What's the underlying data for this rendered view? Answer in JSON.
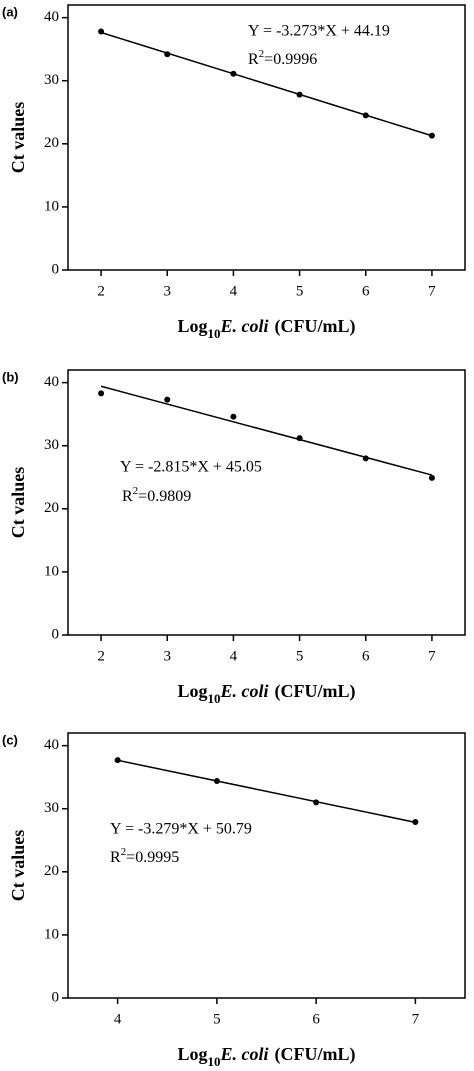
{
  "chart_data": [
    {
      "type": "scatter",
      "panel_label": "(a)",
      "x": [
        2,
        3,
        4,
        5,
        6,
        7
      ],
      "values": [
        37.8,
        34.2,
        31.1,
        27.8,
        24.5,
        21.3
      ],
      "color": "#000000",
      "xlim": [
        1.5,
        7.5
      ],
      "xticks": [
        2,
        3,
        4,
        5,
        6,
        7
      ],
      "ylim": [
        0,
        42
      ],
      "yticks": [
        0,
        10,
        20,
        30,
        40
      ],
      "y_label": "Ct values",
      "x_label": {
        "prefix": "Log",
        "subscript": "10",
        "species": "E. coli",
        "unit": "(CFU/mL)"
      },
      "fit": {
        "slope": -3.273,
        "intercept": 44.19,
        "equation": "Y = -3.273*X + 44.19",
        "r2": {
          "symbol": "R",
          "power": "2",
          "text": "=0.9996"
        }
      }
    },
    {
      "type": "scatter",
      "panel_label": "(b)",
      "x": [
        2,
        3,
        4,
        5,
        6,
        7
      ],
      "values": [
        38.3,
        37.3,
        34.6,
        31.2,
        28.0,
        24.9
      ],
      "color": "#000000",
      "xlim": [
        1.5,
        7.5
      ],
      "xticks": [
        2,
        3,
        4,
        5,
        6,
        7
      ],
      "ylim": [
        0,
        42
      ],
      "yticks": [
        0,
        10,
        20,
        30,
        40
      ],
      "y_label": "Ct values",
      "x_label": {
        "prefix": "Log",
        "subscript": "10",
        "species": "E. coli",
        "unit": "(CFU/mL)"
      },
      "fit": {
        "slope": -2.815,
        "intercept": 45.05,
        "equation": "Y = -2.815*X + 45.05",
        "r2": {
          "symbol": "R",
          "power": "2",
          "text": "=0.9809"
        }
      }
    },
    {
      "type": "scatter",
      "panel_label": "(c)",
      "x": [
        4,
        5,
        6,
        7
      ],
      "values": [
        37.7,
        34.4,
        31.0,
        27.9
      ],
      "color": "#000000",
      "xlim": [
        3.5,
        7.5
      ],
      "xticks": [
        4,
        5,
        6,
        7
      ],
      "ylim": [
        0,
        42
      ],
      "yticks": [
        0,
        10,
        20,
        30,
        40
      ],
      "y_label": "Ct values",
      "x_label": {
        "prefix": "Log",
        "subscript": "10",
        "species": "E. coli",
        "unit": "(CFU/mL)"
      },
      "fit": {
        "slope": -3.279,
        "intercept": 50.79,
        "equation": "Y = -3.279*X + 50.79",
        "r2": {
          "symbol": "R",
          "power": "2",
          "text": "=0.9995"
        }
      }
    }
  ]
}
